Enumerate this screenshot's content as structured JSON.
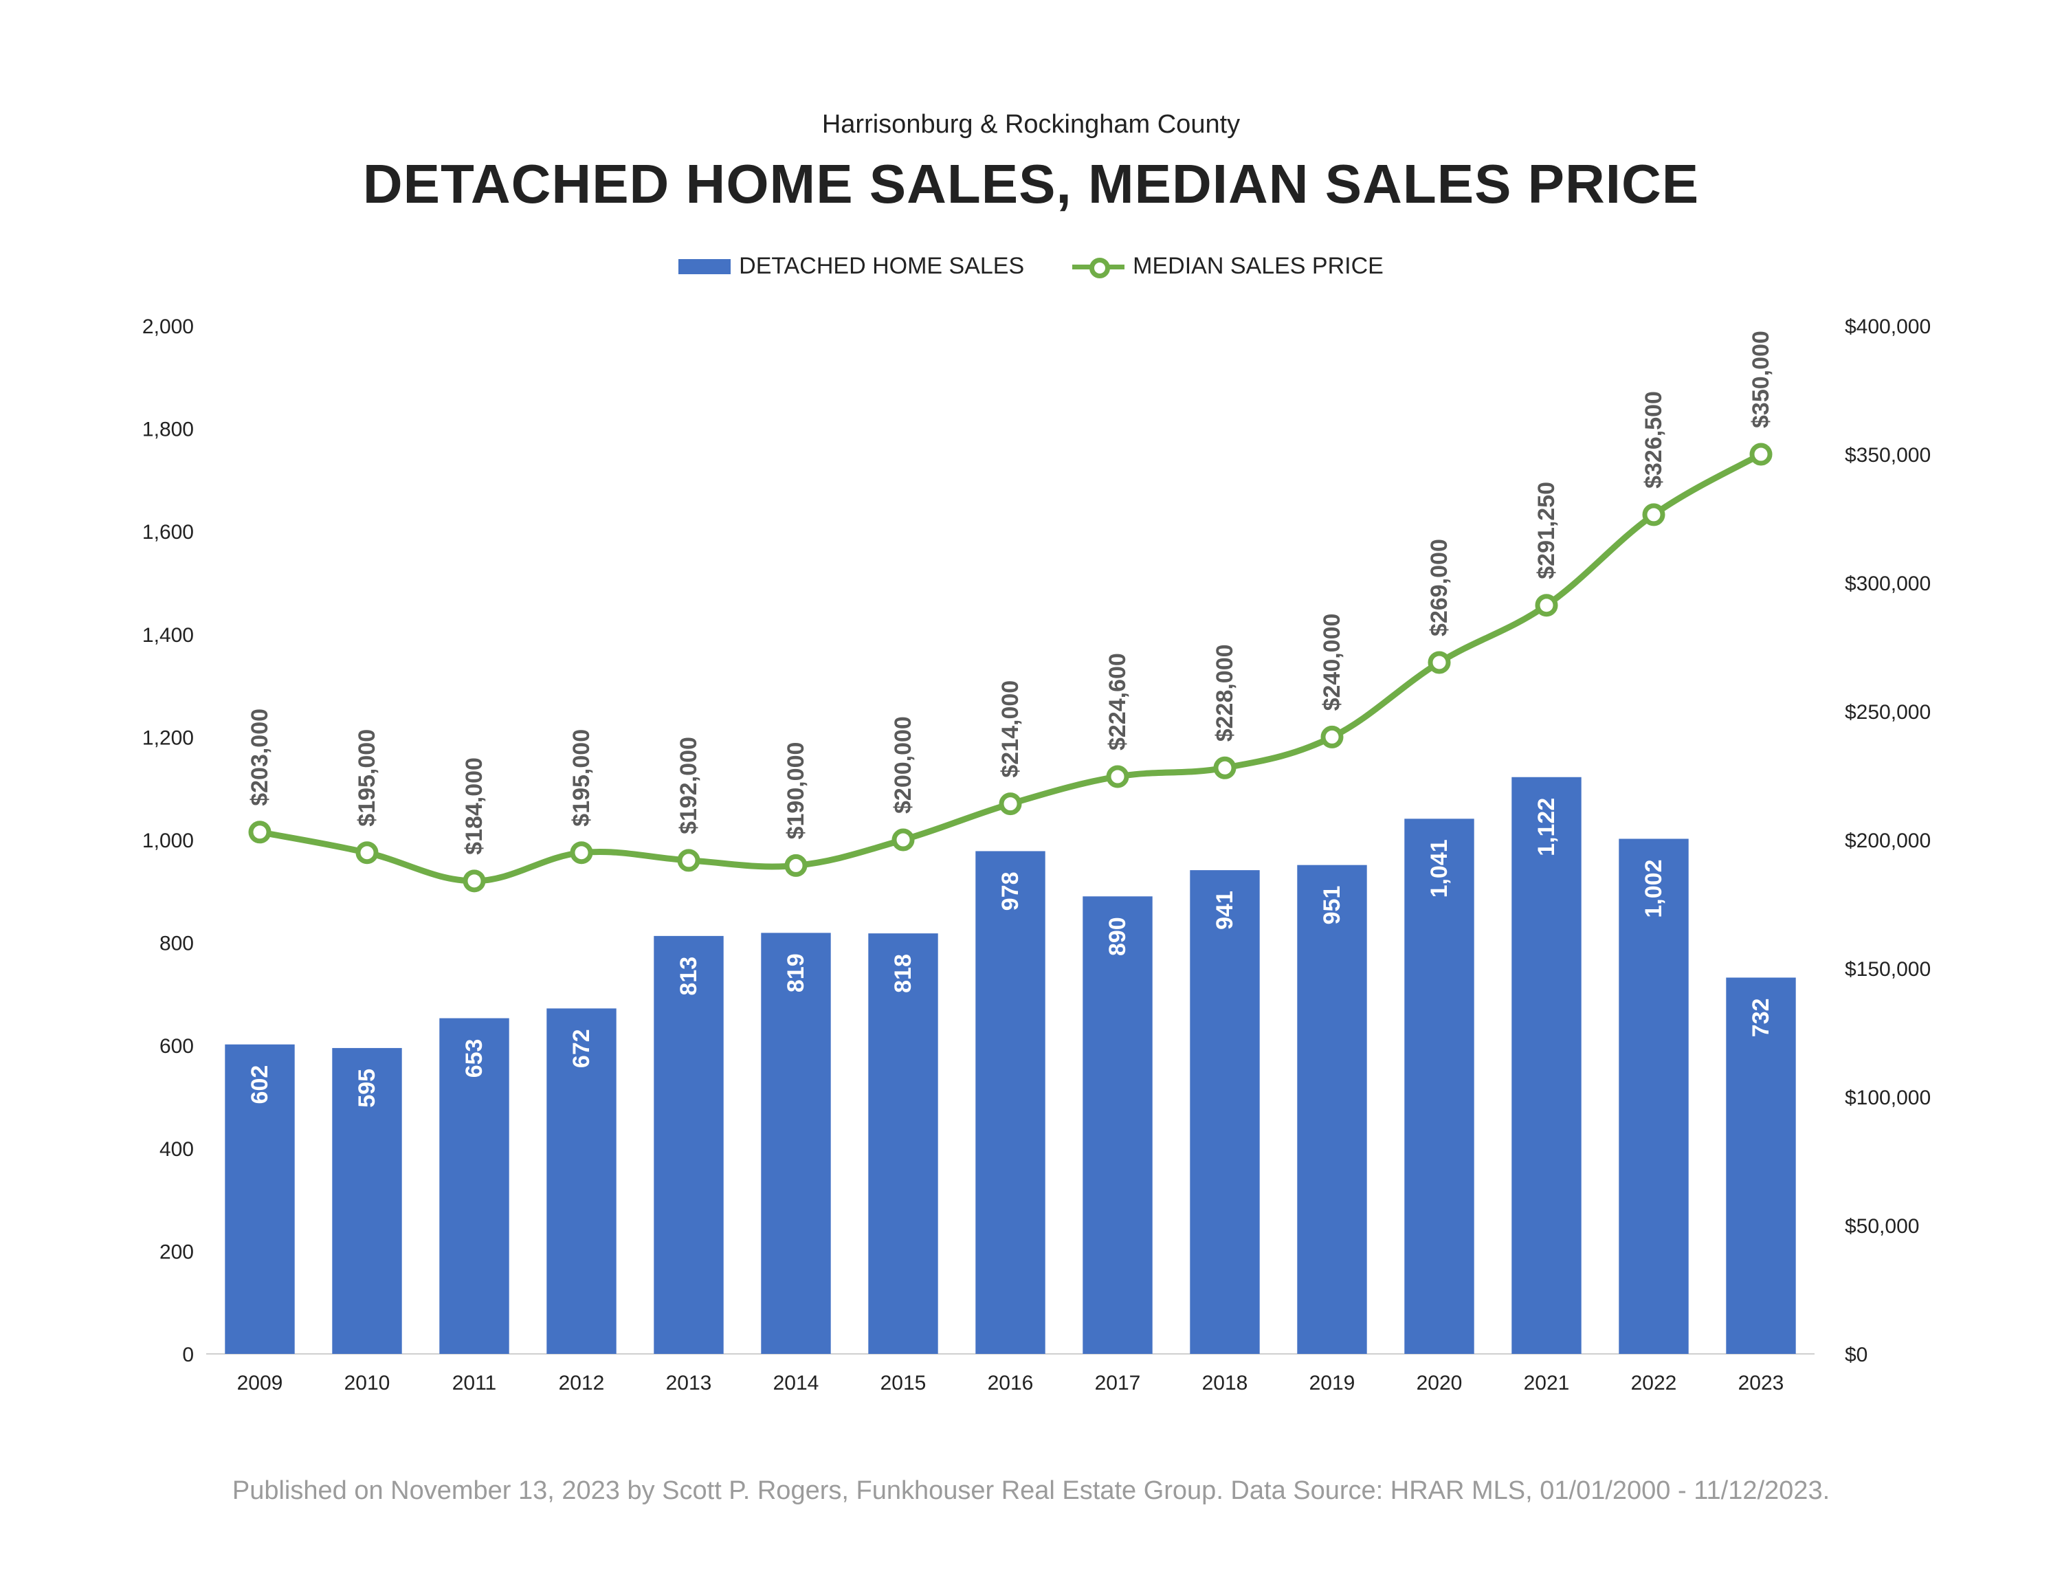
{
  "subtitle": "Harrisonburg & Rockingham County",
  "title": "DETACHED HOME SALES, MEDIAN SALES PRICE",
  "footer": "Published on November 13, 2023 by Scott P. Rogers, Funkhouser Real Estate Group. Data Source: HRAR MLS, 01/01/2000 - 11/12/2023.",
  "colors": {
    "bar": "#4472C4",
    "line": "#70AD47"
  },
  "chart_data": {
    "type": "bar",
    "title": "DETACHED HOME SALES, MEDIAN SALES PRICE",
    "subtitle": "Harrisonburg & Rockingham County",
    "legend_position": "top-center",
    "grid": false,
    "categories": [
      "2009",
      "2010",
      "2011",
      "2012",
      "2013",
      "2014",
      "2015",
      "2016",
      "2017",
      "2018",
      "2019",
      "2020",
      "2021",
      "2022",
      "2023"
    ],
    "series": [
      {
        "name": "DETACHED HOME SALES",
        "type": "bar",
        "axis": "left",
        "values": [
          602,
          595,
          653,
          672,
          813,
          819,
          818,
          978,
          890,
          941,
          951,
          1041,
          1122,
          1002,
          732
        ],
        "labels": [
          "602",
          "595",
          "653",
          "672",
          "813",
          "819",
          "818",
          "978",
          "890",
          "941",
          "951",
          "1,041",
          "1,122",
          "1,002",
          "732"
        ]
      },
      {
        "name": "MEDIAN SALES PRICE",
        "type": "line",
        "axis": "right",
        "values": [
          203000,
          195000,
          184000,
          195000,
          192000,
          190000,
          200000,
          214000,
          224600,
          228000,
          240000,
          269000,
          291250,
          326500,
          350000
        ],
        "labels": [
          "$203,000",
          "$195,000",
          "$184,000",
          "$195,000",
          "$192,000",
          "$190,000",
          "$200,000",
          "$214,000",
          "$224,600",
          "$228,000",
          "$240,000",
          "$269,000",
          "$291,250",
          "$326,500",
          "$350,000"
        ]
      }
    ],
    "y_left": {
      "range": [
        0,
        2000
      ],
      "ticks": [
        "0",
        "200",
        "400",
        "600",
        "800",
        "1,000",
        "1,200",
        "1,400",
        "1,600",
        "1,800",
        "2,000"
      ]
    },
    "y_right": {
      "range": [
        0,
        400000
      ],
      "ticks": [
        "$0",
        "$50,000",
        "$100,000",
        "$150,000",
        "$200,000",
        "$250,000",
        "$300,000",
        "$350,000",
        "$400,000"
      ]
    }
  }
}
